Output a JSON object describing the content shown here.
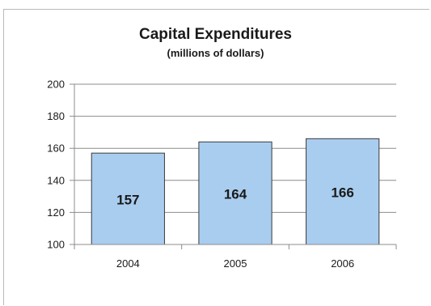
{
  "chart_data": {
    "type": "bar",
    "title": "Capital Expenditures",
    "subtitle": "(millions of dollars)",
    "categories": [
      "2004",
      "2005",
      "2006"
    ],
    "values": [
      157,
      164,
      166
    ],
    "data_labels": [
      "157",
      "164",
      "166"
    ],
    "ylim": [
      100,
      200
    ],
    "yticks": [
      100,
      120,
      140,
      160,
      180,
      200
    ],
    "grid": true,
    "legend": "none",
    "colors": {
      "bar_fill": "#a9cdef",
      "bar_stroke": "#3a3a3a",
      "grid": "#8c8c8c",
      "axis": "#8c8c8c",
      "text": "#1a1a1a"
    }
  }
}
